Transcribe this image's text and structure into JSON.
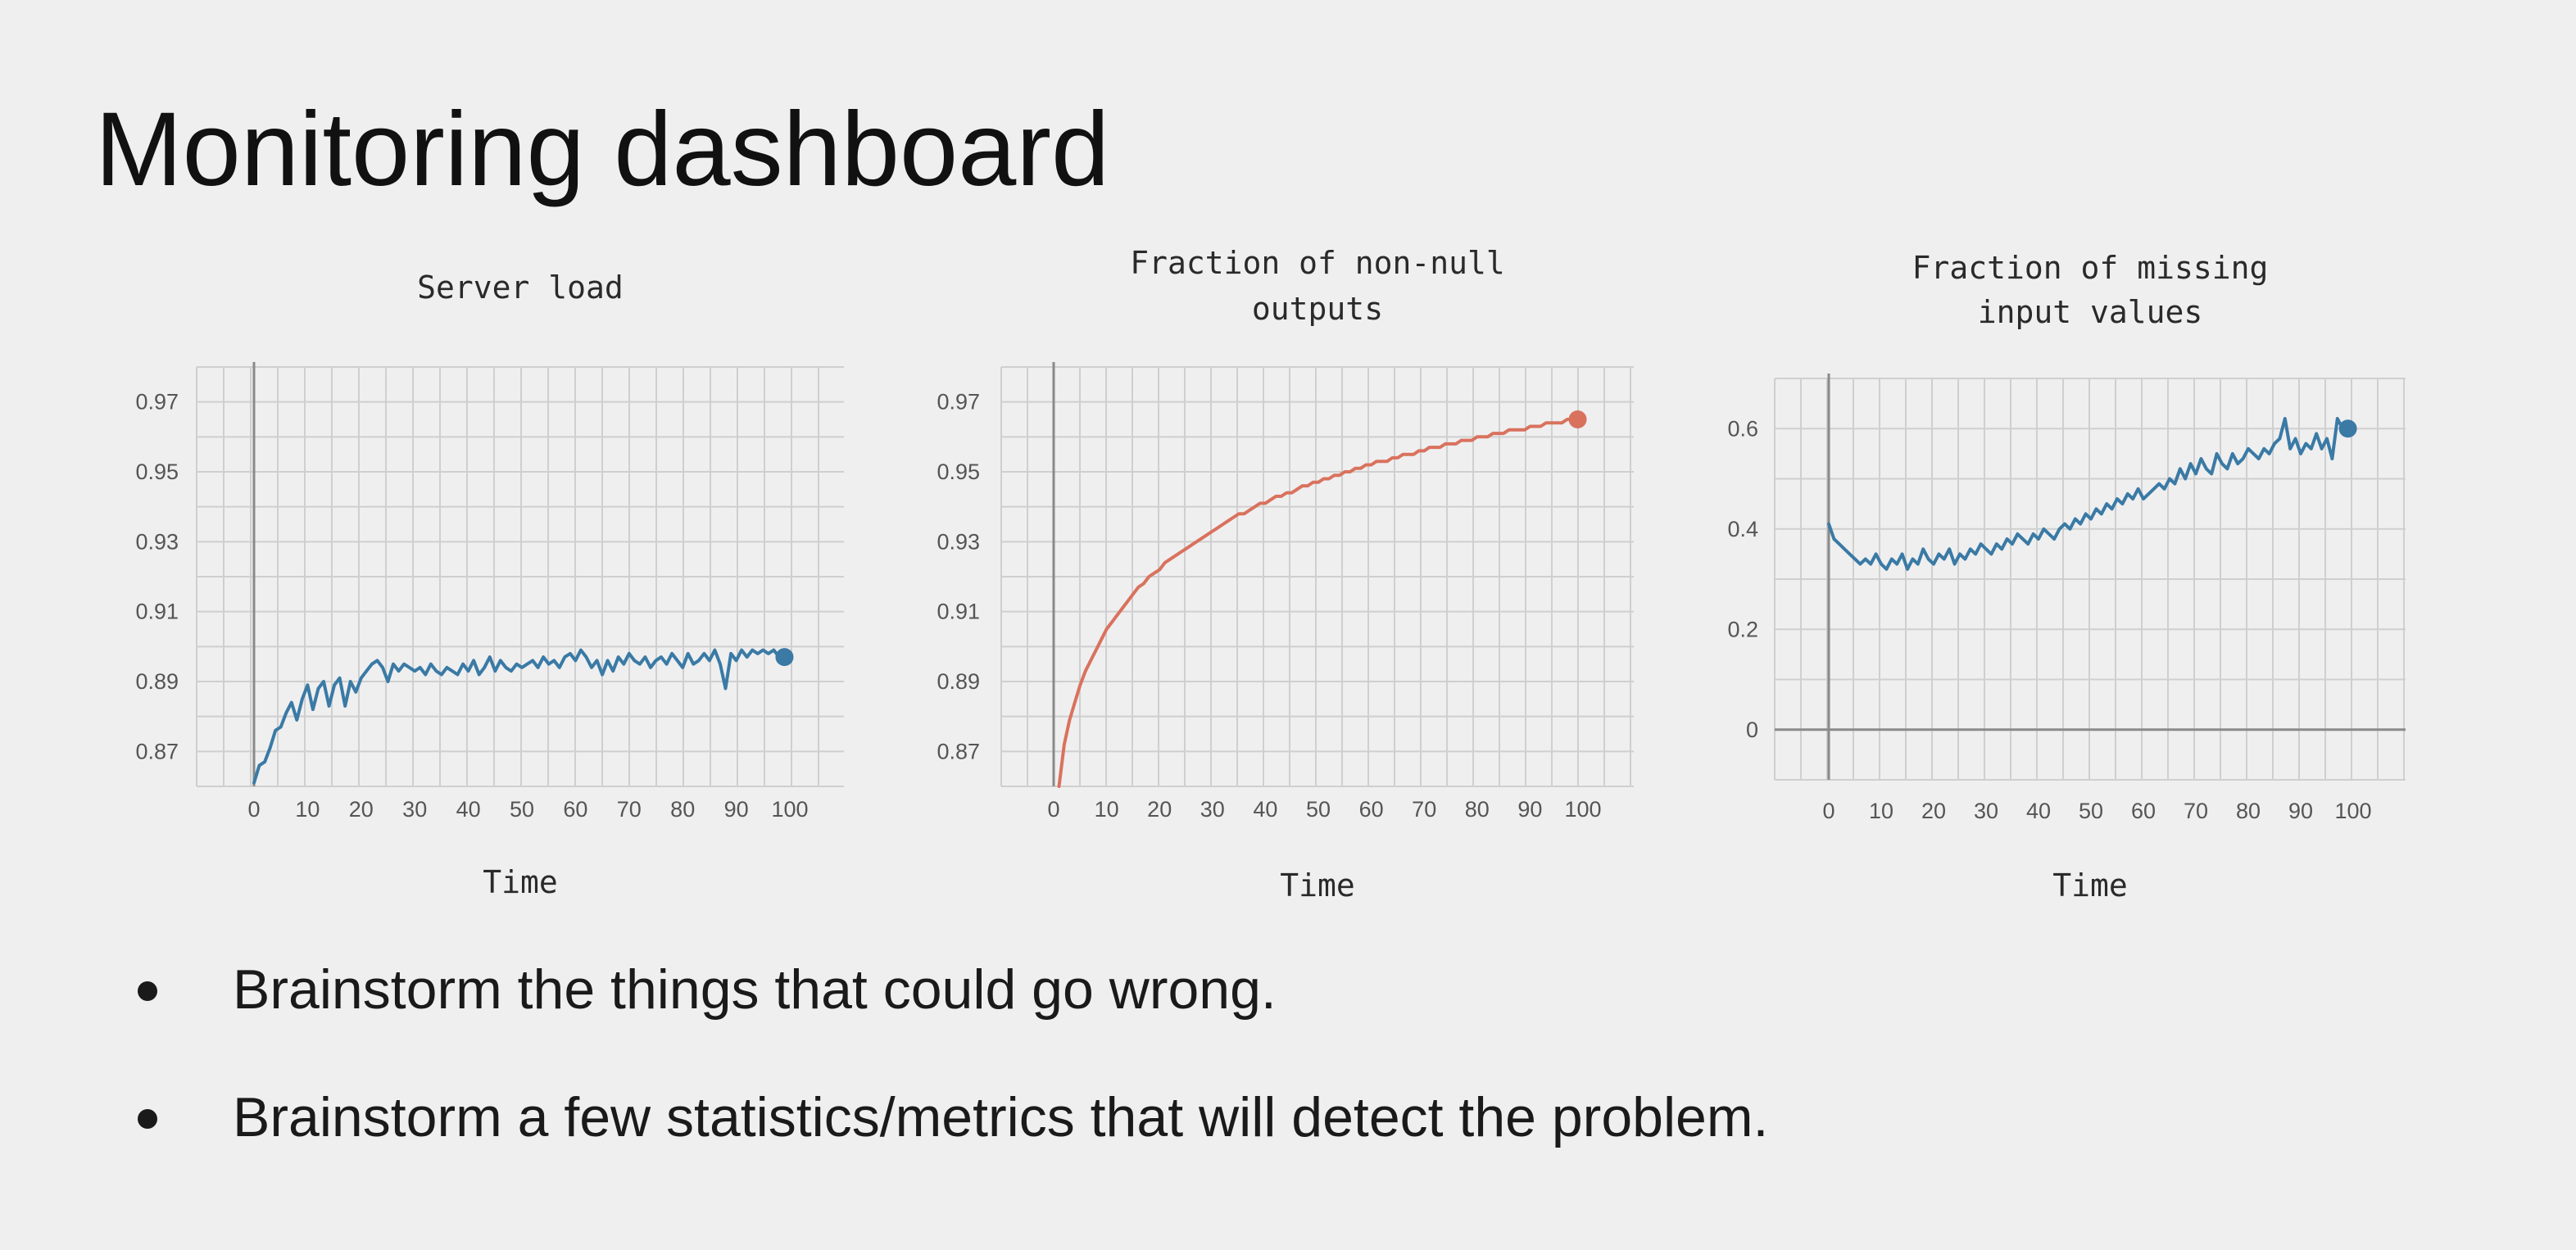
{
  "slide": {
    "title": "Monitoring dashboard",
    "bullets": [
      "Brainstorm the things that could go wrong.",
      "Brainstorm a few statistics/metrics that will detect the problem."
    ]
  },
  "colors": {
    "blue": "#3a7aa5",
    "orange": "#d9725d",
    "grid": "#cfcfcf",
    "axis": "#8a8a8a"
  },
  "chart_data": [
    {
      "type": "line",
      "title": "Server load",
      "xlabel": "Time",
      "ylabel": "",
      "xlim": [
        0,
        100
      ],
      "ylim": [
        0.86,
        0.98
      ],
      "xticks": [
        0,
        10,
        20,
        30,
        40,
        50,
        60,
        70,
        80,
        90,
        100
      ],
      "yticks": [
        0.87,
        0.89,
        0.91,
        0.93,
        0.95,
        0.97
      ],
      "grid": true,
      "color": "#3a7aa5",
      "series": [
        {
          "x": [
            0,
            1,
            2,
            3,
            4,
            5,
            6,
            7,
            8,
            9,
            10,
            11,
            12,
            13,
            14,
            15,
            16,
            17,
            18,
            19,
            20,
            21,
            22,
            23,
            24,
            25,
            26,
            27,
            28,
            29,
            30,
            31,
            32,
            33,
            34,
            35,
            36,
            37,
            38,
            39,
            40,
            41,
            42,
            43,
            44,
            45,
            46,
            47,
            48,
            49,
            50,
            51,
            52,
            53,
            54,
            55,
            56,
            57,
            58,
            59,
            60,
            61,
            62,
            63,
            64,
            65,
            66,
            67,
            68,
            69,
            70,
            71,
            72,
            73,
            74,
            75,
            76,
            77,
            78,
            79,
            80,
            81,
            82,
            83,
            84,
            85,
            86,
            87,
            88,
            89,
            90,
            91,
            92,
            93,
            94,
            95,
            96,
            97,
            98,
            99
          ],
          "values": [
            0.861,
            0.866,
            0.867,
            0.871,
            0.876,
            0.877,
            0.881,
            0.884,
            0.879,
            0.885,
            0.889,
            0.882,
            0.888,
            0.89,
            0.883,
            0.889,
            0.891,
            0.883,
            0.89,
            0.887,
            0.891,
            0.893,
            0.895,
            0.896,
            0.894,
            0.89,
            0.895,
            0.893,
            0.895,
            0.894,
            0.893,
            0.894,
            0.892,
            0.895,
            0.893,
            0.892,
            0.894,
            0.893,
            0.892,
            0.895,
            0.893,
            0.896,
            0.892,
            0.894,
            0.897,
            0.893,
            0.896,
            0.894,
            0.893,
            0.895,
            0.894,
            0.895,
            0.896,
            0.894,
            0.897,
            0.895,
            0.896,
            0.894,
            0.897,
            0.898,
            0.896,
            0.899,
            0.897,
            0.894,
            0.896,
            0.892,
            0.896,
            0.893,
            0.897,
            0.895,
            0.898,
            0.896,
            0.895,
            0.897,
            0.894,
            0.896,
            0.897,
            0.895,
            0.898,
            0.896,
            0.894,
            0.898,
            0.895,
            0.896,
            0.898,
            0.896,
            0.899,
            0.895,
            0.888,
            0.898,
            0.896,
            0.899,
            0.897,
            0.899,
            0.898,
            0.899,
            0.898,
            0.899,
            0.897,
            0.897
          ]
        }
      ]
    },
    {
      "type": "line",
      "title": "Fraction of non-null outputs",
      "xlabel": "Time",
      "ylabel": "",
      "xlim": [
        0,
        100
      ],
      "ylim": [
        0.86,
        0.98
      ],
      "xticks": [
        0,
        10,
        20,
        30,
        40,
        50,
        60,
        70,
        80,
        90,
        100
      ],
      "yticks": [
        0.87,
        0.89,
        0.91,
        0.93,
        0.95,
        0.97
      ],
      "grid": true,
      "color": "#d9725d",
      "series": [
        {
          "x": [
            1,
            2,
            3,
            4,
            5,
            6,
            7,
            8,
            9,
            10,
            11,
            12,
            13,
            14,
            15,
            16,
            17,
            18,
            19,
            20,
            21,
            22,
            23,
            24,
            25,
            26,
            27,
            28,
            29,
            30,
            31,
            32,
            33,
            34,
            35,
            36,
            37,
            38,
            39,
            40,
            41,
            42,
            43,
            44,
            45,
            46,
            47,
            48,
            49,
            50,
            51,
            52,
            53,
            54,
            55,
            56,
            57,
            58,
            59,
            60,
            61,
            62,
            63,
            64,
            65,
            66,
            67,
            68,
            69,
            70,
            71,
            72,
            73,
            74,
            75,
            76,
            77,
            78,
            79,
            80,
            81,
            82,
            83,
            84,
            85,
            86,
            87,
            88,
            89,
            90,
            91,
            92,
            93,
            94,
            95,
            96,
            97,
            98,
            99
          ],
          "values": [
            0.86,
            0.872,
            0.879,
            0.884,
            0.889,
            0.893,
            0.896,
            0.899,
            0.902,
            0.905,
            0.907,
            0.909,
            0.911,
            0.913,
            0.915,
            0.917,
            0.918,
            0.92,
            0.921,
            0.922,
            0.924,
            0.925,
            0.926,
            0.927,
            0.928,
            0.929,
            0.93,
            0.931,
            0.932,
            0.933,
            0.934,
            0.935,
            0.936,
            0.937,
            0.938,
            0.938,
            0.939,
            0.94,
            0.941,
            0.941,
            0.942,
            0.943,
            0.943,
            0.944,
            0.944,
            0.945,
            0.946,
            0.946,
            0.947,
            0.947,
            0.948,
            0.948,
            0.949,
            0.949,
            0.95,
            0.95,
            0.951,
            0.951,
            0.952,
            0.952,
            0.953,
            0.953,
            0.953,
            0.954,
            0.954,
            0.955,
            0.955,
            0.955,
            0.956,
            0.956,
            0.957,
            0.957,
            0.957,
            0.958,
            0.958,
            0.958,
            0.959,
            0.959,
            0.959,
            0.96,
            0.96,
            0.96,
            0.961,
            0.961,
            0.961,
            0.962,
            0.962,
            0.962,
            0.962,
            0.963,
            0.963,
            0.963,
            0.964,
            0.964,
            0.964,
            0.964,
            0.965,
            0.965,
            0.965
          ]
        }
      ]
    },
    {
      "type": "line",
      "title": "Fraction of missing input values",
      "xlabel": "Time",
      "ylabel": "",
      "xlim": [
        0,
        100
      ],
      "ylim": [
        -0.1,
        0.7
      ],
      "xticks": [
        0,
        10,
        20,
        30,
        40,
        50,
        60,
        70,
        80,
        90,
        100
      ],
      "yticks": [
        0,
        0.2,
        0.4,
        0.6
      ],
      "ytick_labels": [
        "0",
        "0.2",
        "0.4",
        "0.6"
      ],
      "grid": true,
      "color": "#3a7aa5",
      "series": [
        {
          "x": [
            0,
            1,
            2,
            3,
            4,
            5,
            6,
            7,
            8,
            9,
            10,
            11,
            12,
            13,
            14,
            15,
            16,
            17,
            18,
            19,
            20,
            21,
            22,
            23,
            24,
            25,
            26,
            27,
            28,
            29,
            30,
            31,
            32,
            33,
            34,
            35,
            36,
            37,
            38,
            39,
            40,
            41,
            42,
            43,
            44,
            45,
            46,
            47,
            48,
            49,
            50,
            51,
            52,
            53,
            54,
            55,
            56,
            57,
            58,
            59,
            60,
            61,
            62,
            63,
            64,
            65,
            66,
            67,
            68,
            69,
            70,
            71,
            72,
            73,
            74,
            75,
            76,
            77,
            78,
            79,
            80,
            81,
            82,
            83,
            84,
            85,
            86,
            87,
            88,
            89,
            90,
            91,
            92,
            93,
            94,
            95,
            96,
            97,
            98,
            99
          ],
          "values": [
            0.41,
            0.38,
            0.37,
            0.36,
            0.35,
            0.34,
            0.33,
            0.34,
            0.33,
            0.35,
            0.33,
            0.32,
            0.34,
            0.33,
            0.35,
            0.32,
            0.34,
            0.33,
            0.36,
            0.34,
            0.33,
            0.35,
            0.34,
            0.36,
            0.33,
            0.35,
            0.34,
            0.36,
            0.35,
            0.37,
            0.36,
            0.35,
            0.37,
            0.36,
            0.38,
            0.37,
            0.39,
            0.38,
            0.37,
            0.39,
            0.38,
            0.4,
            0.39,
            0.38,
            0.4,
            0.41,
            0.4,
            0.42,
            0.41,
            0.43,
            0.42,
            0.44,
            0.43,
            0.45,
            0.44,
            0.46,
            0.45,
            0.47,
            0.46,
            0.48,
            0.46,
            0.47,
            0.48,
            0.49,
            0.48,
            0.5,
            0.49,
            0.52,
            0.5,
            0.53,
            0.51,
            0.54,
            0.52,
            0.51,
            0.55,
            0.53,
            0.52,
            0.55,
            0.53,
            0.54,
            0.56,
            0.55,
            0.54,
            0.56,
            0.55,
            0.57,
            0.58,
            0.62,
            0.56,
            0.58,
            0.55,
            0.57,
            0.56,
            0.59,
            0.56,
            0.58,
            0.54,
            0.62,
            0.6,
            0.6
          ]
        }
      ]
    }
  ]
}
